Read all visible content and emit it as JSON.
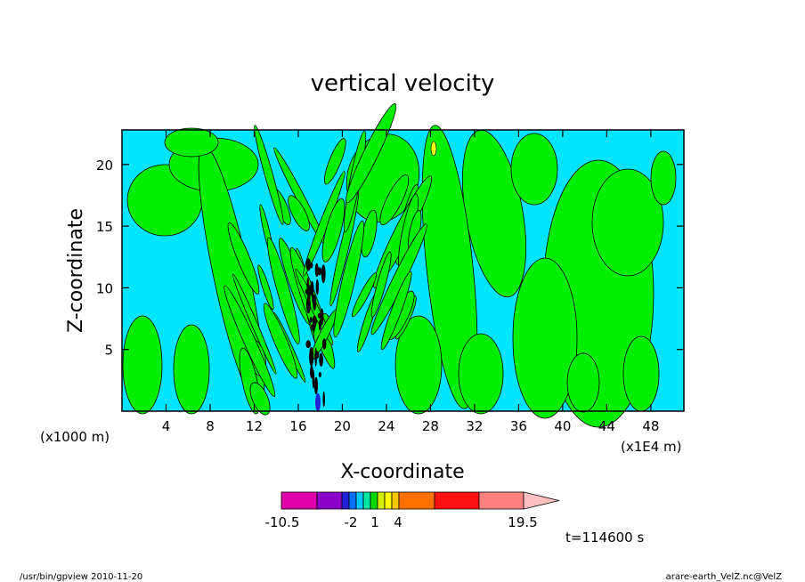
{
  "chart_data": {
    "type": "heatmap",
    "title": "vertical velocity",
    "xlabel": "X-coordinate",
    "ylabel": "Z-coordinate",
    "x_unit_left": "(x1000 m)",
    "x_unit_right": "(x1E4 m)",
    "x_ticks": [
      4,
      8,
      12,
      16,
      20,
      24,
      28,
      32,
      36,
      40,
      44,
      48
    ],
    "y_ticks": [
      5,
      10,
      15,
      20
    ],
    "xlim": [
      0,
      51
    ],
    "ylim": [
      0,
      22.8
    ],
    "time_label": "t=114600 s",
    "colorbar": {
      "segments": [
        "#dd00aa",
        "#8a00c8",
        "#2020d8",
        "#0070ff",
        "#00c8ff",
        "#00e6a0",
        "#00d800",
        "#d4f000",
        "#ffff00",
        "#ffc800",
        "#ff7000",
        "#ff1010",
        "#ff8080",
        "#ffc0c0"
      ],
      "labels": [
        "-10.5",
        "-2",
        "1",
        "4",
        "19.5"
      ]
    },
    "dominant_colors": {
      "negative_weak": "#00e5ff",
      "positive_weak": "#00ee00",
      "strong_negative": "#000000"
    }
  },
  "footer": {
    "left": "/usr/bin/gpview   2010-11-20",
    "right": "arare-earth_VelZ.nc@VelZ"
  }
}
